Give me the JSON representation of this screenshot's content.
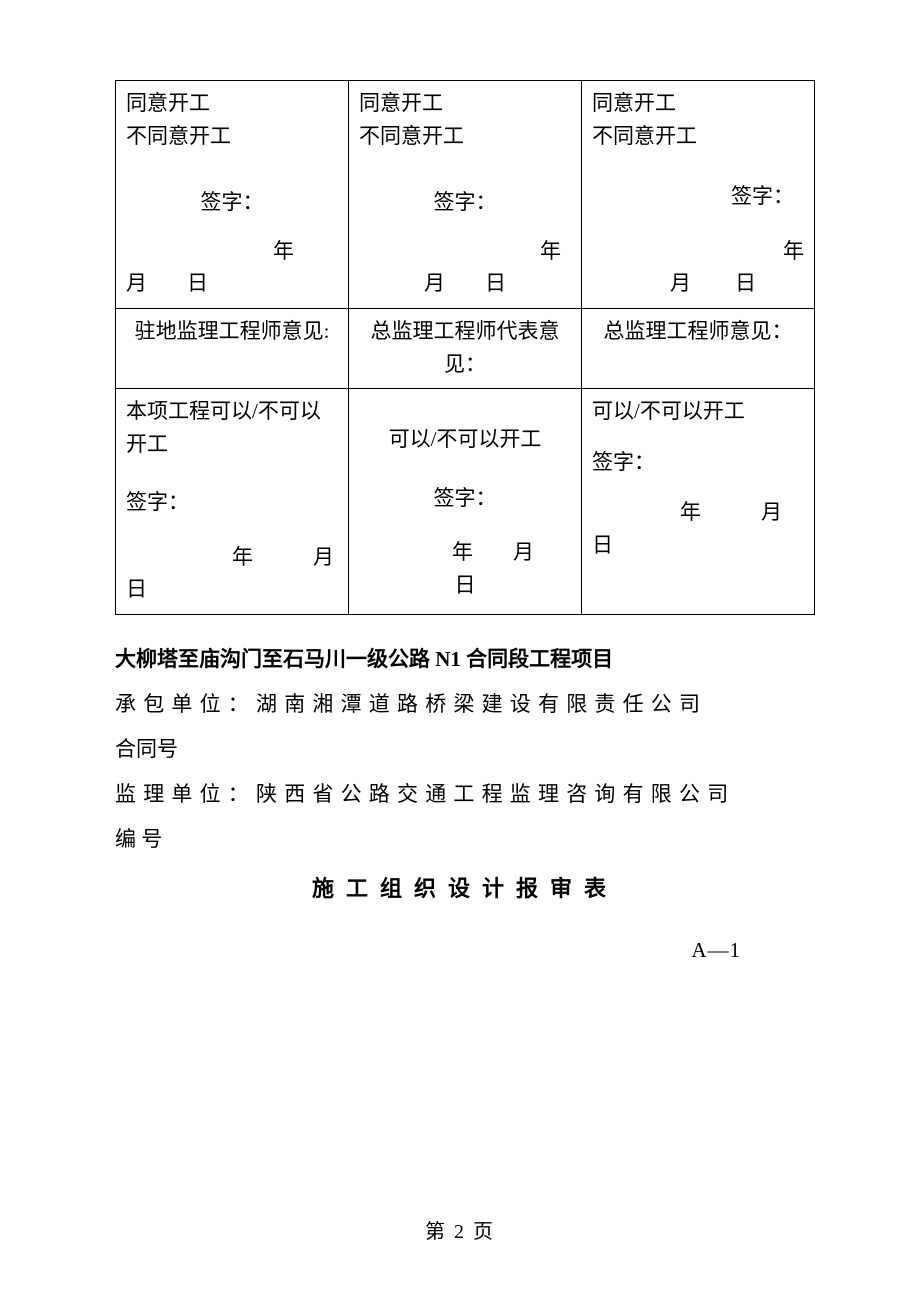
{
  "table": {
    "row1": {
      "agree": "同意开工",
      "disagree": "不同意开工",
      "sign_label": "签字：",
      "year": "年",
      "month": "月",
      "day": "日"
    },
    "row2": {
      "c1": "驻地监理工程师意见:",
      "c2": "总监理工程师代表意见：",
      "c3": "总监理工程师意见："
    },
    "row3": {
      "c1_top": "本项工程可以/不可以开工",
      "c2_top": "可以/不可以开工",
      "c3_top": "可以/不可以开工",
      "sign_label": "签字：",
      "year": "年",
      "month": "月",
      "day": "日"
    }
  },
  "below": {
    "project_title": "大柳塔至庙沟门至石马川一级公路 N1 合同段工程项目",
    "contractor_line": "承包单位：湖南湘潭道路桥梁建设有限责任公司",
    "contract_no_label": "合同号",
    "supervisor_line": "监理单位：陕西省公路交通工程监理咨询有限公司",
    "serial_label": "编  号",
    "form_title": "施工组织设计报审表",
    "form_code": "A—1"
  },
  "footer": "第 2 页"
}
